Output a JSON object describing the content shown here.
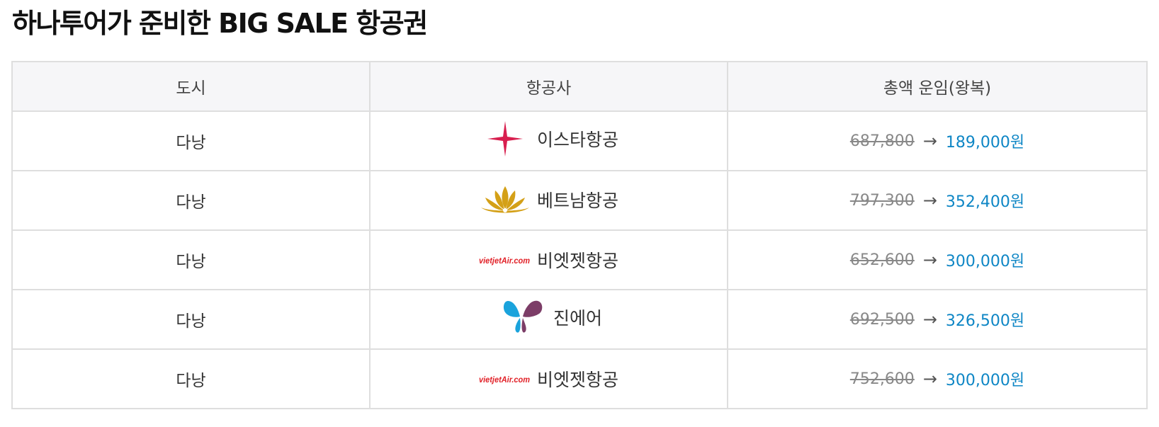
{
  "page": {
    "title": "하나투어가 준비한 BIG SALE 항공권"
  },
  "table": {
    "headers": {
      "city": "도시",
      "airline": "항공사",
      "fare": "총액 운임(왕복)"
    },
    "currency_unit": "원",
    "arrow": "→",
    "rows": [
      {
        "city": "다낭",
        "airline": "이스타항공",
        "logo": "eastar-jet-star-logo",
        "original_price": "687,800",
        "sale_price": "189,000"
      },
      {
        "city": "다낭",
        "airline": "베트남항공",
        "logo": "vietnam-airlines-lotus-logo",
        "original_price": "797,300",
        "sale_price": "352,400"
      },
      {
        "city": "다낭",
        "airline": "비엣젯항공",
        "logo": "vietjet-air-logo",
        "logo_text": "vietjetAir.com",
        "original_price": "652,600",
        "sale_price": "300,000"
      },
      {
        "city": "다낭",
        "airline": "진에어",
        "logo": "jin-air-butterfly-logo",
        "original_price": "692,500",
        "sale_price": "326,500"
      },
      {
        "city": "다낭",
        "airline": "비엣젯항공",
        "logo": "vietjet-air-logo",
        "logo_text": "vietjetAir.com",
        "original_price": "752,600",
        "sale_price": "300,000"
      }
    ]
  },
  "colors": {
    "sale_price": "#0e86c5",
    "original_price": "#888888",
    "header_bg": "#f6f6f8",
    "border": "#dedede",
    "eastar_red": "#d81f4f",
    "vietnam_gold": "#d4a017",
    "vietjet_red": "#e11f26",
    "jinair_blue": "#1aa3dc",
    "jinair_purple": "#7c3d67"
  }
}
